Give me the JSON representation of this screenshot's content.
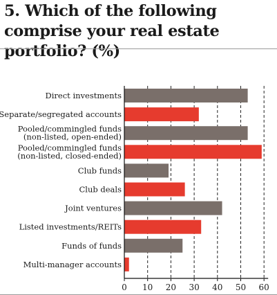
{
  "chart_data": {
    "type": "bar",
    "orientation": "horizontal",
    "title": "5. Which of the following comprise your real estate portfolio? (%)",
    "categories": [
      [
        "Direct investments"
      ],
      [
        "Separate/segregated accounts"
      ],
      [
        "Pooled/commingled funds",
        "(non-listed, open-ended)"
      ],
      [
        "Pooled/commingled funds",
        "(non-listed, closed-ended)"
      ],
      [
        "Club funds"
      ],
      [
        "Club deals"
      ],
      [
        "Joint ventures"
      ],
      [
        "Listed investments/REITs"
      ],
      [
        "Funds of funds"
      ],
      [
        "Multi-manager accounts"
      ]
    ],
    "values": [
      53,
      32,
      53,
      59,
      19,
      26,
      42,
      33,
      25,
      2
    ],
    "bar_colors": [
      "#7a6f6a",
      "#e63b2e",
      "#7a6f6a",
      "#e63b2e",
      "#7a6f6a",
      "#e63b2e",
      "#7a6f6a",
      "#e63b2e",
      "#7a6f6a",
      "#e63b2e"
    ],
    "xlim": [
      0,
      60
    ],
    "xticks": [
      0,
      10,
      20,
      30,
      40,
      50,
      60
    ],
    "grid": "vertical dashed"
  }
}
